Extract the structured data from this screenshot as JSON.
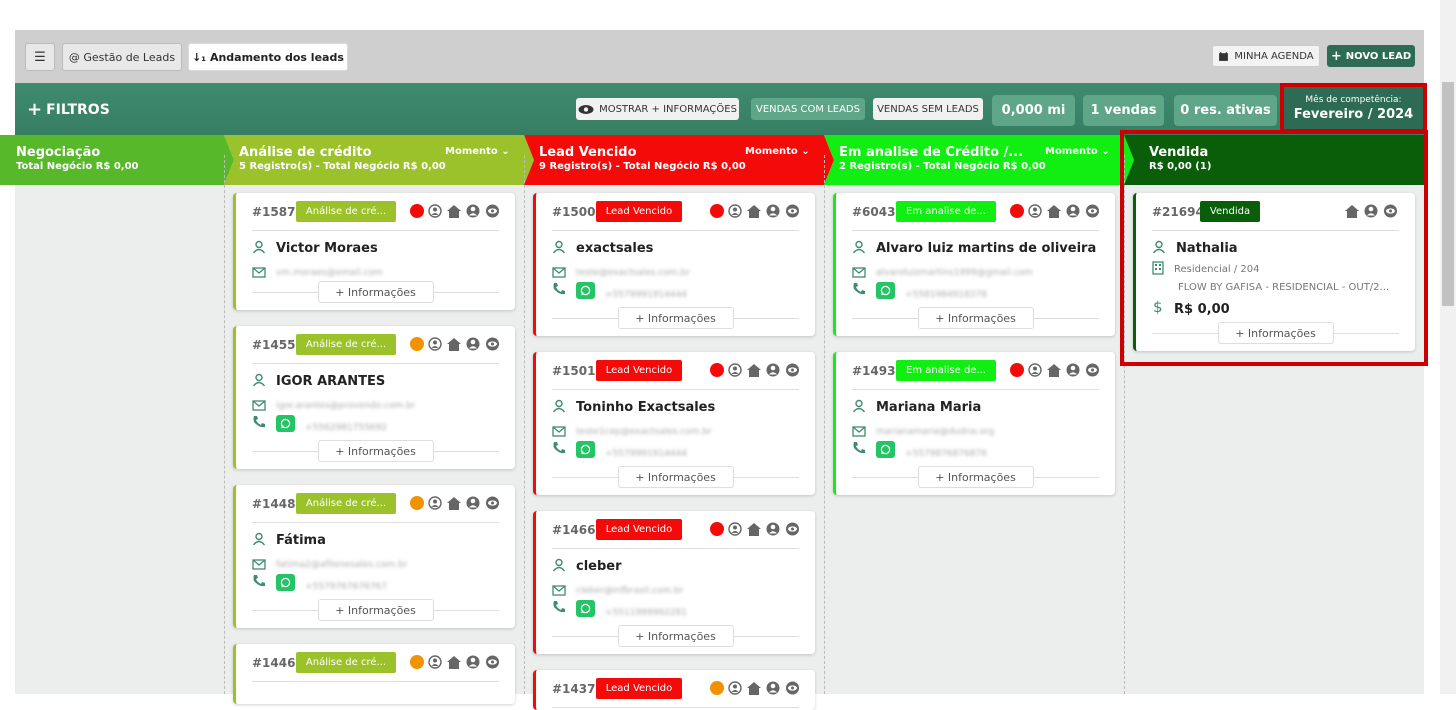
{
  "topbar": {
    "menu_icon": "☰",
    "tab_gestao": "@ Gestão de Leads",
    "tab_andamento": "↓₁ Andamento dos leads",
    "agenda": "MINHA AGENDA",
    "novo_lead": "NOVO LEAD"
  },
  "filterbar": {
    "filtros": "FILTROS",
    "mostrar": "MOSTRAR + INFORMAÇÕES",
    "vendas_com_leads": "VENDAS COM LEADS",
    "vendas_sem_leads": "VENDAS SEM LEADS",
    "stat_mi": "0,000 mi",
    "stat_vendas": "1 vendas",
    "stat_res": "0 res. ativas",
    "mes_label": "Mês de competência:",
    "mes_value": "Fevereiro / 2024"
  },
  "columns": [
    {
      "title": "Negociação",
      "sub": "Total Negócio R$ 0,00",
      "color": "#57b82a"
    },
    {
      "title": "Análise de crédito",
      "sub": "5 Registro(s) - Total Negócio R$ 0,00",
      "momento": "Momento",
      "color": "#9bc22b"
    },
    {
      "title": "Lead Vencido",
      "sub": "9 Registro(s) - Total Negócio R$ 0,00",
      "momento": "Momento",
      "color": "#f50a0a"
    },
    {
      "title": "Em analise de Crédito /...",
      "sub": "2 Registro(s) - Total Negócio R$ 0,00",
      "momento": "Momento",
      "color": "#11ee11"
    },
    {
      "title": "Vendida",
      "sub": "R$ 0,00 (1)",
      "color": "#0a5e0a"
    }
  ],
  "info_label": "+ Informações",
  "cards": {
    "c1587": {
      "num": "#1587",
      "badge": "Análise de cré...",
      "name": "Victor Moraes",
      "email": "vm.moraes@email.com"
    },
    "c1455": {
      "num": "#1455",
      "badge": "Análise de cré...",
      "name": "IGOR ARANTES",
      "email": "igor.arantes@provendo.com.br",
      "phone": "+5562981755692"
    },
    "c1448": {
      "num": "#1448",
      "badge": "Análise de cré...",
      "name": "Fátima",
      "email": "fatima2@afilenesales.com.br",
      "phone": "+5579767676767"
    },
    "c1446": {
      "num": "#1446",
      "badge": "Análise de cré..."
    },
    "c1500": {
      "num": "#1500",
      "badge": "Lead Vencido",
      "name": "exactsales",
      "email": "teste@exactsales.com.br",
      "phone": "+5579991914444"
    },
    "c1501": {
      "num": "#1501",
      "badge": "Lead Vencido",
      "name": "Toninho Exactsales",
      "email": "teste1cep@exactsales.com.br",
      "phone": "+5579991914444"
    },
    "c1466": {
      "num": "#1466",
      "badge": "Lead Vencido",
      "name": "cleber",
      "email": "cleber@infbrasil.com.br",
      "phone": "+5511999992281"
    },
    "c1437": {
      "num": "#1437",
      "badge": "Lead Vencido"
    },
    "c6043": {
      "num": "#6043",
      "badge": "Em analise de...",
      "name": "Alvaro luiz martins de oliveira",
      "email": "alvaroluizmartins1999@gmail.com",
      "phone": "+5581984918378"
    },
    "c1493": {
      "num": "#1493",
      "badge": "Em analise de...",
      "name": "Mariana Maria",
      "email": "marianamaria@dudna.org",
      "phone": "+5579876876876"
    },
    "c21694": {
      "num": "#21694",
      "badge": "Vendida",
      "name": "Nathalia",
      "unit": "Residencial / 204",
      "project": "FLOW BY GAFISA - RESIDENCIAL - OUT/2...",
      "value": "R$ 0,00"
    }
  },
  "colors": {
    "green_dark": "#2e6b55",
    "red": "#f50a0a",
    "orange": "#f39200",
    "accent_teal": "#5fa588"
  }
}
